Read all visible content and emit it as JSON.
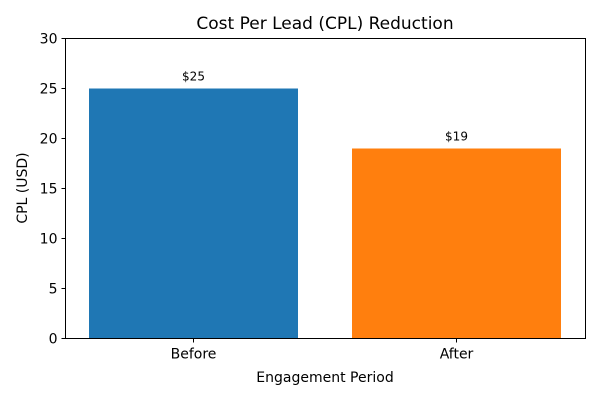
{
  "chart_data": {
    "type": "bar",
    "title": "Cost Per Lead (CPL) Reduction",
    "xlabel": "Engagement Period",
    "ylabel": "CPL (USD)",
    "categories": [
      "Before",
      "After"
    ],
    "values": [
      25,
      19
    ],
    "data_labels": [
      "$25",
      "$19"
    ],
    "colors": [
      "#1f77b4",
      "#ff7f0e"
    ],
    "ylim": [
      0,
      30
    ],
    "yticks": [
      0,
      5,
      10,
      15,
      20,
      25,
      30
    ],
    "grid": false,
    "legend": "none"
  }
}
